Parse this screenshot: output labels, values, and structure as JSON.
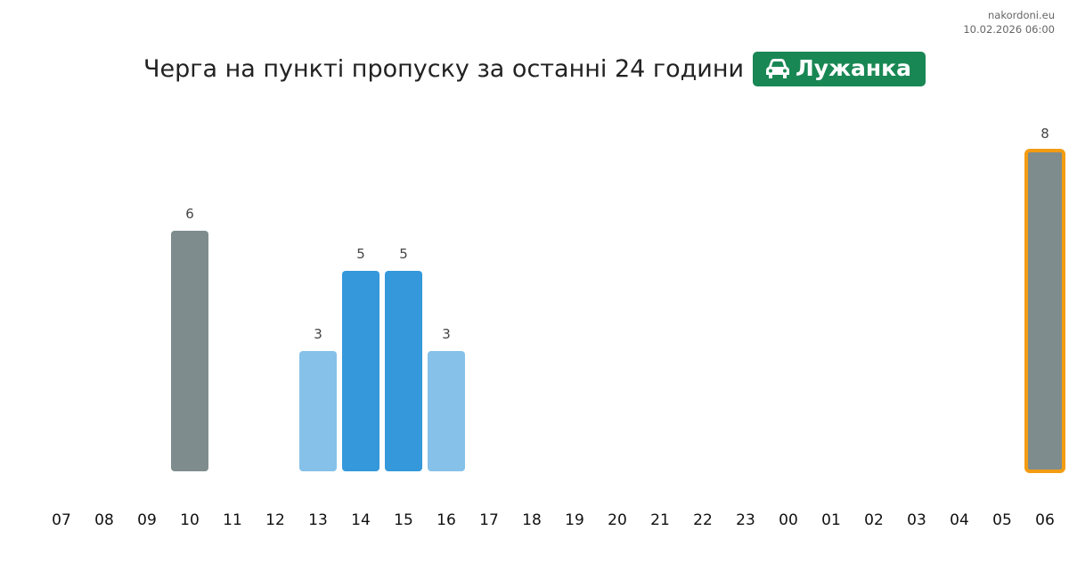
{
  "site": {
    "name": "nakordoni.eu",
    "timestamp": "10.02.2026 06:00"
  },
  "title": "Черга на пункті пропуску за останні 24 години",
  "badge": {
    "label": "Лужанка",
    "icon": "car-icon",
    "color": "#198754"
  },
  "chart_data": {
    "type": "bar",
    "categories": [
      "07",
      "08",
      "09",
      "10",
      "11",
      "12",
      "13",
      "14",
      "15",
      "16",
      "17",
      "18",
      "19",
      "20",
      "21",
      "22",
      "23",
      "00",
      "01",
      "02",
      "03",
      "04",
      "05",
      "06"
    ],
    "values": [
      0,
      0,
      0,
      6,
      0,
      0,
      3,
      5,
      5,
      3,
      0,
      0,
      0,
      0,
      0,
      0,
      0,
      0,
      0,
      0,
      0,
      0,
      0,
      8
    ],
    "bar_colors": [
      "",
      "",
      "",
      "#7f8c8d",
      "",
      "",
      "#85c1e9",
      "#3498db",
      "#3498db",
      "#85c1e9",
      "",
      "",
      "",
      "",
      "",
      "",
      "",
      "",
      "",
      "",
      "",
      "",
      "",
      "#7f8c8d"
    ],
    "highlight": {
      "category": "06",
      "border_color": "#f39c12"
    },
    "grid": false
  }
}
